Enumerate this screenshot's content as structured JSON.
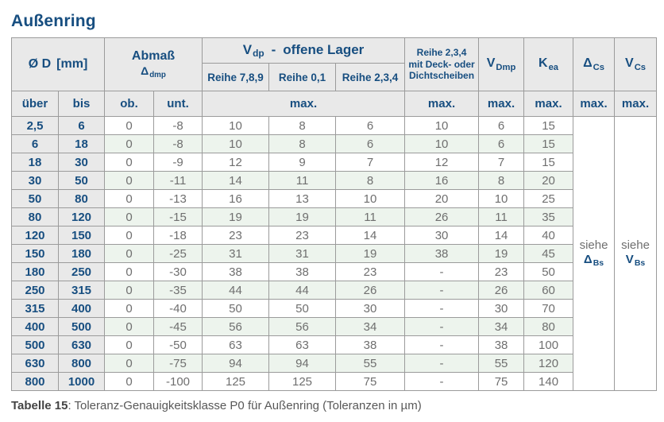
{
  "title": "Außenring",
  "header": {
    "d": {
      "main": "Ø D",
      "unit": "[mm]"
    },
    "abmass": {
      "line1": "Abmaß",
      "sym": "Δ",
      "sub": "dmp"
    },
    "vdp": {
      "main": "V",
      "sub": "dp",
      "dash": "-",
      "rest": "offene Lager"
    },
    "reihe789": "Reihe 7,8,9",
    "reihe01": "Reihe 0,1",
    "reihe234": "Reihe 2,3,4",
    "deck_lines": [
      "Reihe 2,3,4",
      "mit Deck- oder",
      "Dichtscheiben"
    ],
    "vdmp": {
      "main": "V",
      "sub": "Dmp"
    },
    "kea": {
      "main": "K",
      "sub": "ea"
    },
    "dcs": {
      "main": "Δ",
      "sub": "Cs"
    },
    "vcs": {
      "main": "V",
      "sub": "Cs"
    },
    "ueber": "über",
    "bis": "bis",
    "ob": "ob.",
    "unt": "unt.",
    "max": "max."
  },
  "siehe": {
    "dbs": {
      "word": "siehe",
      "main": "Δ",
      "sub": "Bs"
    },
    "vbs": {
      "word": "siehe",
      "main": "V",
      "sub": "Bs"
    }
  },
  "rows": [
    {
      "ueber": "2,5",
      "bis": "6",
      "ob": "0",
      "unt": "-8",
      "r789": "10",
      "r01": "8",
      "r234": "6",
      "deck": "10",
      "vdmp": "6",
      "kea": "15"
    },
    {
      "ueber": "6",
      "bis": "18",
      "ob": "0",
      "unt": "-8",
      "r789": "10",
      "r01": "8",
      "r234": "6",
      "deck": "10",
      "vdmp": "6",
      "kea": "15"
    },
    {
      "ueber": "18",
      "bis": "30",
      "ob": "0",
      "unt": "-9",
      "r789": "12",
      "r01": "9",
      "r234": "7",
      "deck": "12",
      "vdmp": "7",
      "kea": "15"
    },
    {
      "ueber": "30",
      "bis": "50",
      "ob": "0",
      "unt": "-11",
      "r789": "14",
      "r01": "11",
      "r234": "8",
      "deck": "16",
      "vdmp": "8",
      "kea": "20"
    },
    {
      "ueber": "50",
      "bis": "80",
      "ob": "0",
      "unt": "-13",
      "r789": "16",
      "r01": "13",
      "r234": "10",
      "deck": "20",
      "vdmp": "10",
      "kea": "25"
    },
    {
      "ueber": "80",
      "bis": "120",
      "ob": "0",
      "unt": "-15",
      "r789": "19",
      "r01": "19",
      "r234": "11",
      "deck": "26",
      "vdmp": "11",
      "kea": "35"
    },
    {
      "ueber": "120",
      "bis": "150",
      "ob": "0",
      "unt": "-18",
      "r789": "23",
      "r01": "23",
      "r234": "14",
      "deck": "30",
      "vdmp": "14",
      "kea": "40"
    },
    {
      "ueber": "150",
      "bis": "180",
      "ob": "0",
      "unt": "-25",
      "r789": "31",
      "r01": "31",
      "r234": "19",
      "deck": "38",
      "vdmp": "19",
      "kea": "45"
    },
    {
      "ueber": "180",
      "bis": "250",
      "ob": "0",
      "unt": "-30",
      "r789": "38",
      "r01": "38",
      "r234": "23",
      "deck": "-",
      "vdmp": "23",
      "kea": "50"
    },
    {
      "ueber": "250",
      "bis": "315",
      "ob": "0",
      "unt": "-35",
      "r789": "44",
      "r01": "44",
      "r234": "26",
      "deck": "-",
      "vdmp": "26",
      "kea": "60"
    },
    {
      "ueber": "315",
      "bis": "400",
      "ob": "0",
      "unt": "-40",
      "r789": "50",
      "r01": "50",
      "r234": "30",
      "deck": "-",
      "vdmp": "30",
      "kea": "70"
    },
    {
      "ueber": "400",
      "bis": "500",
      "ob": "0",
      "unt": "-45",
      "r789": "56",
      "r01": "56",
      "r234": "34",
      "deck": "-",
      "vdmp": "34",
      "kea": "80"
    },
    {
      "ueber": "500",
      "bis": "630",
      "ob": "0",
      "unt": "-50",
      "r789": "63",
      "r01": "63",
      "r234": "38",
      "deck": "-",
      "vdmp": "38",
      "kea": "100"
    },
    {
      "ueber": "630",
      "bis": "800",
      "ob": "0",
      "unt": "-75",
      "r789": "94",
      "r01": "94",
      "r234": "55",
      "deck": "-",
      "vdmp": "55",
      "kea": "120"
    },
    {
      "ueber": "800",
      "bis": "1000",
      "ob": "0",
      "unt": "-100",
      "r789": "125",
      "r01": "125",
      "r234": "75",
      "deck": "-",
      "vdmp": "75",
      "kea": "140"
    }
  ],
  "caption": {
    "label": "Tabelle 15",
    "text": ": Toleranz-Genauigkeitsklasse P0 für Außenring (Toleranzen in µm)"
  },
  "colors": {
    "accent_blue": "#174e80",
    "header_bg": "#e9e9e9",
    "stripe_green": "#edf4ed",
    "data_text": "#6f6f6f",
    "border": "#9b9b9b"
  }
}
